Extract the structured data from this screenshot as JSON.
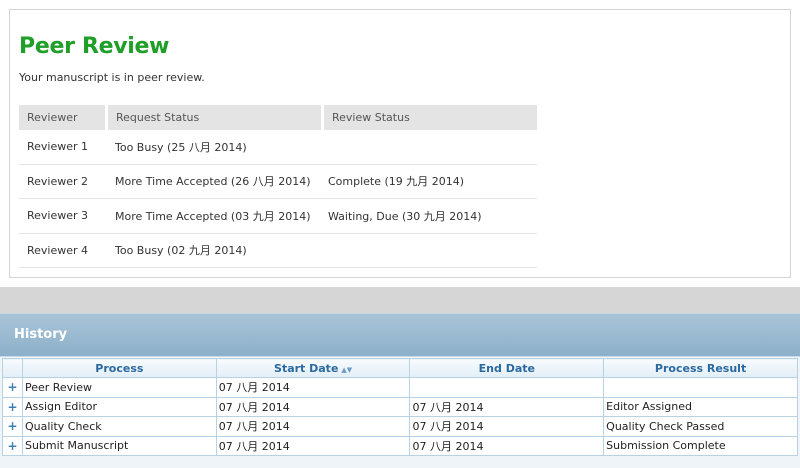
{
  "peer_review": {
    "title": "Peer Review",
    "subtitle": "Your manuscript is in peer review.",
    "columns": [
      "Reviewer",
      "Request Status",
      "Review Status"
    ],
    "rows": [
      {
        "reviewer": "Reviewer 1",
        "request_status": "Too Busy (25 八月 2014)",
        "review_status": ""
      },
      {
        "reviewer": "Reviewer 2",
        "request_status": "More Time Accepted (26 八月 2014)",
        "review_status": "Complete (19 九月 2014)"
      },
      {
        "reviewer": "Reviewer 3",
        "request_status": "More Time Accepted (03 九月 2014)",
        "review_status": "Waiting, Due (30 九月 2014)"
      },
      {
        "reviewer": "Reviewer 4",
        "request_status": "Too Busy (02 九月 2014)",
        "review_status": ""
      }
    ]
  },
  "history": {
    "title": "History",
    "columns": [
      "Process",
      "Start Date",
      "End Date",
      "Process Result"
    ],
    "sort_indicator": "▲▼",
    "expand_symbol": "+",
    "rows": [
      {
        "process": "Peer Review",
        "start": "07 八月 2014",
        "end": "",
        "result": ""
      },
      {
        "process": "Assign Editor",
        "start": "07 八月 2014",
        "end": "07 八月 2014",
        "result": "Editor Assigned"
      },
      {
        "process": "Quality Check",
        "start": "07 八月 2014",
        "end": "07 八月 2014",
        "result": "Quality Check Passed"
      },
      {
        "process": "Submit Manuscript",
        "start": "07 八月 2014",
        "end": "07 八月 2014",
        "result": "Submission Complete"
      }
    ]
  },
  "colors": {
    "title_green": "#1f9e28",
    "history_header": "#8cb0c9",
    "grid_header_text": "#2a6aa0"
  }
}
